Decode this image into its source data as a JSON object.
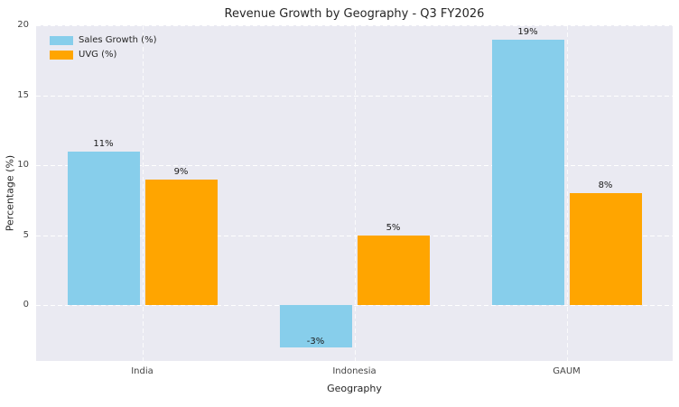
{
  "chart_data": {
    "type": "bar",
    "title": "Revenue Growth by Geography - Q3 FY2026",
    "xlabel": "Geography",
    "ylabel": "Percentage (%)",
    "categories": [
      "India",
      "Indonesia",
      "GAUM"
    ],
    "series": [
      {
        "name": "Sales Growth (%)",
        "color": "#87CEEB",
        "values": [
          11,
          -3,
          19
        ],
        "labels": [
          "11%",
          "-3%",
          "19%"
        ]
      },
      {
        "name": "UVG (%)",
        "color": "#FFA500",
        "values": [
          9,
          5,
          8
        ],
        "labels": [
          "9%",
          "5%",
          "8%"
        ]
      }
    ],
    "yticks": [
      0,
      5,
      10,
      15,
      20
    ],
    "ylim": [
      -4,
      20
    ],
    "grid": "dashed-white",
    "plot_background": "#eaeaf2",
    "legend_position": "upper-left"
  }
}
